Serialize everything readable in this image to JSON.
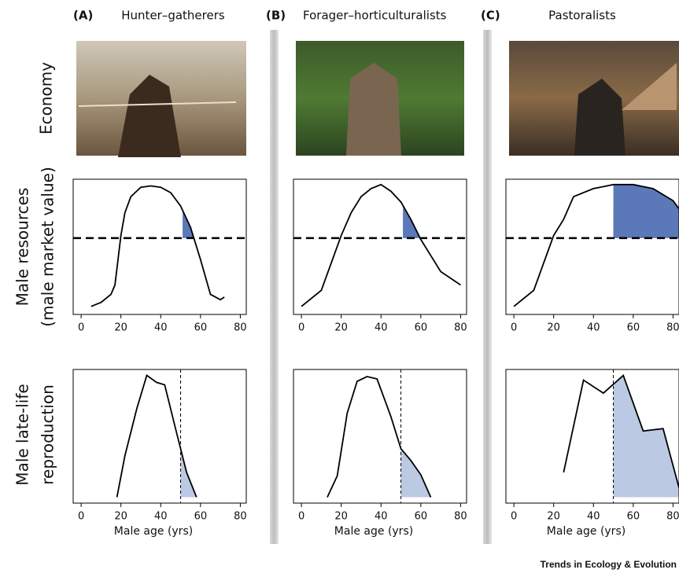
{
  "columns": [
    {
      "letter": "(A)",
      "title": "Hunter–gatherers"
    },
    {
      "letter": "(B)",
      "title": "Forager–horticulturalists"
    },
    {
      "letter": "(C)",
      "title": "Pastoralists"
    }
  ],
  "row_labels": [
    [
      "Economy"
    ],
    [
      "Male resources",
      "(male market value)"
    ],
    [
      "Male late-life",
      "reproduction"
    ]
  ],
  "footer": "Trends in Ecology & Evolution",
  "chart_data": [
    {
      "type": "line",
      "x": [
        5,
        10,
        15,
        17,
        20,
        22,
        25,
        30,
        35,
        40,
        45,
        50,
        55,
        60,
        65,
        70,
        72
      ],
      "values": [
        0.06,
        0.09,
        0.15,
        0.22,
        0.59,
        0.76,
        0.88,
        0.95,
        0.96,
        0.95,
        0.91,
        0.81,
        0.65,
        0.41,
        0.15,
        0.11,
        0.13
      ],
      "xlim": [
        -4,
        83
      ],
      "xticks": [
        0,
        20,
        40,
        60,
        80
      ],
      "ylim": [
        0,
        1.01
      ],
      "line_color": "#000000",
      "threshold": 0.57,
      "shade_from": 51,
      "shade_color": "#5b78b8"
    },
    {
      "type": "line",
      "x": [
        0,
        10,
        20,
        25,
        30,
        35,
        40,
        45,
        50,
        55,
        60,
        65,
        70,
        80
      ],
      "values": [
        0.06,
        0.18,
        0.59,
        0.76,
        0.88,
        0.94,
        0.97,
        0.92,
        0.84,
        0.71,
        0.56,
        0.44,
        0.32,
        0.22
      ],
      "xlim": [
        -4,
        83
      ],
      "xticks": [
        0,
        20,
        40,
        60,
        80
      ],
      "ylim": [
        0,
        1.01
      ],
      "line_color": "#000000",
      "threshold": 0.57,
      "shade_from": 51,
      "shade_color": "#5b78b8"
    },
    {
      "type": "line",
      "x": [
        0,
        10,
        20,
        25,
        30,
        40,
        50,
        60,
        70,
        80,
        83
      ],
      "values": [
        0.06,
        0.18,
        0.59,
        0.71,
        0.88,
        0.94,
        0.97,
        0.97,
        0.94,
        0.85,
        0.79
      ],
      "xlim": [
        -4,
        83
      ],
      "xticks": [
        0,
        20,
        40,
        60,
        80
      ],
      "ylim": [
        0,
        1.01
      ],
      "line_color": "#000000",
      "threshold": 0.57,
      "shade_from": 50,
      "shade_color": "#5b78b8"
    },
    {
      "type": "line",
      "x": [
        18,
        22,
        28,
        33,
        38,
        42,
        47,
        50,
        53,
        58
      ],
      "values": [
        0,
        0.35,
        0.75,
        1.03,
        0.97,
        0.95,
        0.61,
        0.41,
        0.21,
        0
      ],
      "xlim": [
        -4,
        83
      ],
      "xticks": [
        0,
        20,
        40,
        60,
        80
      ],
      "ylim": [
        -0.05,
        1.08
      ],
      "line_color": "#000000",
      "cutoff": 50,
      "shade_color": "#bcc9e3",
      "xlabel": "Male age (yrs)"
    },
    {
      "type": "line",
      "x": [
        13,
        18,
        23,
        28,
        33,
        38,
        45,
        50,
        55,
        60,
        65
      ],
      "values": [
        0,
        0.18,
        0.71,
        0.98,
        1.02,
        1.0,
        0.68,
        0.41,
        0.31,
        0.19,
        0
      ],
      "xlim": [
        -4,
        83
      ],
      "xticks": [
        0,
        20,
        40,
        60,
        80
      ],
      "ylim": [
        -0.05,
        1.08
      ],
      "line_color": "#000000",
      "cutoff": 50,
      "shade_color": "#bcc9e3",
      "xlabel": "Male age (yrs)"
    },
    {
      "type": "line",
      "x": [
        25,
        35,
        45,
        55,
        65,
        75,
        83
      ],
      "values": [
        0.21,
        0.99,
        0.88,
        1.03,
        0.56,
        0.58,
        0.08
      ],
      "xlim": [
        -4,
        83
      ],
      "xticks": [
        0,
        20,
        40,
        60,
        80
      ],
      "ylim": [
        -0.05,
        1.08
      ],
      "line_color": "#000000",
      "cutoff": 50,
      "shade_color": "#bcc9e3",
      "xlabel": "Male age (yrs)"
    }
  ]
}
